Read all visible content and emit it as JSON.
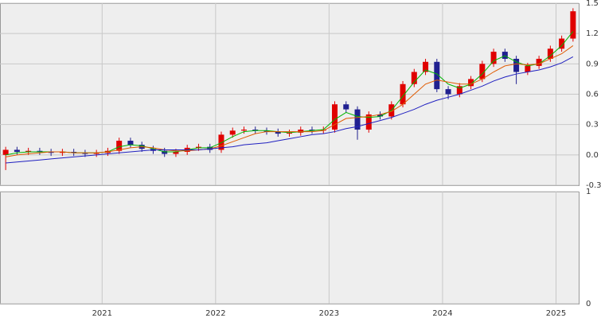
{
  "chart_data": [
    {
      "type": "candlestick",
      "x": [
        2020.15,
        2020.25,
        2020.35,
        2020.45,
        2020.55,
        2020.65,
        2020.75,
        2020.85,
        2020.95,
        2021.05,
        2021.15,
        2021.25,
        2021.35,
        2021.45,
        2021.55,
        2021.65,
        2021.75,
        2021.85,
        2021.95,
        2022.05,
        2022.15,
        2022.25,
        2022.35,
        2022.45,
        2022.55,
        2022.65,
        2022.75,
        2022.85,
        2022.95,
        2023.05,
        2023.15,
        2023.25,
        2023.35,
        2023.45,
        2023.55,
        2023.65,
        2023.75,
        2023.85,
        2023.95,
        2024.05,
        2024.15,
        2024.25,
        2024.35,
        2024.45,
        2024.55,
        2024.65,
        2024.75,
        2024.85,
        2024.95,
        2025.05,
        2025.15
      ],
      "open": [
        0.0,
        0.05,
        0.03,
        0.04,
        0.03,
        0.02,
        0.03,
        0.02,
        0.01,
        0.02,
        0.04,
        0.14,
        0.1,
        0.06,
        0.04,
        0.01,
        0.03,
        0.07,
        0.08,
        0.05,
        0.2,
        0.24,
        0.25,
        0.24,
        0.23,
        0.21,
        0.22,
        0.25,
        0.24,
        0.25,
        0.5,
        0.45,
        0.25,
        0.4,
        0.38,
        0.5,
        0.7,
        0.82,
        0.92,
        0.65,
        0.6,
        0.68,
        0.75,
        0.9,
        1.02,
        0.95,
        0.82,
        0.88,
        0.95,
        1.05,
        1.15
      ],
      "high": [
        0.08,
        0.08,
        0.07,
        0.07,
        0.06,
        0.06,
        0.06,
        0.05,
        0.05,
        0.07,
        0.17,
        0.17,
        0.13,
        0.09,
        0.07,
        0.06,
        0.1,
        0.11,
        0.11,
        0.23,
        0.27,
        0.28,
        0.28,
        0.27,
        0.26,
        0.25,
        0.28,
        0.28,
        0.28,
        0.53,
        0.53,
        0.48,
        0.43,
        0.43,
        0.53,
        0.73,
        0.85,
        0.95,
        0.95,
        0.68,
        0.71,
        0.78,
        0.93,
        1.05,
        1.05,
        0.98,
        0.91,
        0.98,
        1.08,
        1.18,
        1.45
      ],
      "low": [
        -0.15,
        0.0,
        0.0,
        0.0,
        -0.01,
        -0.01,
        -0.01,
        -0.02,
        -0.02,
        -0.01,
        0.01,
        0.07,
        0.03,
        0.01,
        -0.02,
        -0.02,
        0.0,
        0.04,
        0.02,
        0.02,
        0.17,
        0.21,
        0.21,
        0.2,
        0.18,
        0.18,
        0.19,
        0.21,
        0.21,
        0.22,
        0.42,
        0.15,
        0.22,
        0.35,
        0.35,
        0.47,
        0.67,
        0.79,
        0.62,
        0.55,
        0.57,
        0.65,
        0.72,
        0.87,
        0.92,
        0.7,
        0.79,
        0.85,
        0.92,
        1.02,
        1.12
      ],
      "close": [
        0.05,
        0.03,
        0.04,
        0.03,
        0.02,
        0.03,
        0.02,
        0.01,
        0.02,
        0.04,
        0.14,
        0.1,
        0.06,
        0.04,
        0.01,
        0.03,
        0.07,
        0.08,
        0.05,
        0.2,
        0.24,
        0.25,
        0.24,
        0.23,
        0.21,
        0.22,
        0.25,
        0.24,
        0.25,
        0.5,
        0.45,
        0.25,
        0.4,
        0.38,
        0.5,
        0.7,
        0.82,
        0.92,
        0.65,
        0.6,
        0.68,
        0.75,
        0.9,
        1.02,
        0.95,
        0.82,
        0.88,
        0.95,
        1.05,
        1.15,
        1.42
      ],
      "up_color": "#e00000",
      "down_color": "#202090",
      "series": [
        {
          "color": "#00b400",
          "values": [
            0.0,
            0.02,
            0.03,
            0.03,
            0.03,
            0.03,
            0.02,
            0.02,
            0.02,
            0.03,
            0.08,
            0.1,
            0.09,
            0.06,
            0.03,
            0.03,
            0.05,
            0.07,
            0.07,
            0.12,
            0.18,
            0.23,
            0.24,
            0.24,
            0.23,
            0.22,
            0.23,
            0.24,
            0.25,
            0.35,
            0.42,
            0.38,
            0.37,
            0.38,
            0.44,
            0.58,
            0.72,
            0.84,
            0.8,
            0.7,
            0.66,
            0.7,
            0.8,
            0.93,
            0.98,
            0.92,
            0.88,
            0.9,
            0.98,
            1.08,
            1.22
          ]
        },
        {
          "color": "#e05a00",
          "values": [
            -0.02,
            0.0,
            0.01,
            0.02,
            0.03,
            0.03,
            0.02,
            0.02,
            0.02,
            0.03,
            0.05,
            0.07,
            0.08,
            0.07,
            0.05,
            0.04,
            0.04,
            0.05,
            0.06,
            0.09,
            0.13,
            0.17,
            0.21,
            0.23,
            0.23,
            0.23,
            0.23,
            0.23,
            0.24,
            0.3,
            0.36,
            0.37,
            0.38,
            0.4,
            0.43,
            0.5,
            0.6,
            0.7,
            0.74,
            0.72,
            0.7,
            0.7,
            0.75,
            0.82,
            0.88,
            0.9,
            0.89,
            0.9,
            0.95,
            1.0,
            1.08
          ]
        },
        {
          "color": "#2020c0",
          "values": [
            -0.08,
            -0.07,
            -0.06,
            -0.05,
            -0.04,
            -0.03,
            -0.02,
            -0.01,
            0.0,
            0.01,
            0.02,
            0.03,
            0.04,
            0.05,
            0.05,
            0.05,
            0.05,
            0.05,
            0.06,
            0.07,
            0.08,
            0.1,
            0.11,
            0.12,
            0.14,
            0.16,
            0.18,
            0.2,
            0.21,
            0.23,
            0.26,
            0.28,
            0.31,
            0.34,
            0.37,
            0.41,
            0.45,
            0.5,
            0.54,
            0.57,
            0.6,
            0.64,
            0.68,
            0.73,
            0.77,
            0.8,
            0.82,
            0.84,
            0.87,
            0.91,
            0.97
          ]
        }
      ],
      "xlim": [
        2020.1,
        2025.2
      ],
      "xticks": [
        2021,
        2022,
        2023,
        2024,
        2025
      ],
      "ylim": [
        -0.3,
        1.5
      ],
      "yticks": [
        -0.3,
        {
          "value": 0,
          "label": "0.0"
        },
        0.3,
        0.6,
        0.9,
        1.2,
        1.5
      ],
      "grid": true
    },
    {
      "type": "bar",
      "xlim": [
        2020.1,
        2025.2
      ],
      "xticks": [
        2021,
        2022,
        2023,
        2024,
        2025
      ],
      "ylim": [
        0,
        1
      ],
      "yticks": [
        0,
        1
      ],
      "grid": true
    }
  ]
}
